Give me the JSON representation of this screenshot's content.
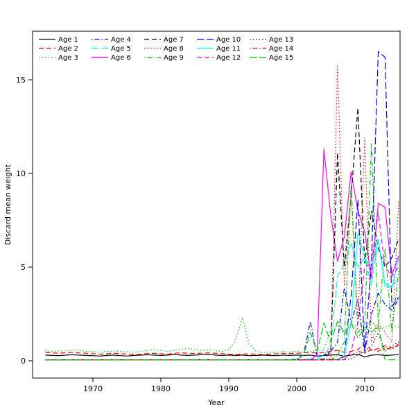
{
  "figure": {
    "background": "#ffffff"
  },
  "chart_data": {
    "type": "line",
    "title": "",
    "xlabel": "Year",
    "ylabel": "Discard mean weight",
    "grid": false,
    "legend_position": "top-left",
    "xlim": [
      1961.5,
      2016
    ],
    "ylim": [
      0,
      17.5
    ],
    "x_ticks": [
      1970,
      1980,
      1990,
      2000,
      2010
    ],
    "y_ticks": [
      0,
      5,
      10,
      15
    ],
    "years": [
      1963,
      1964,
      1965,
      1966,
      1967,
      1968,
      1969,
      1970,
      1971,
      1972,
      1973,
      1974,
      1975,
      1976,
      1977,
      1978,
      1979,
      1980,
      1981,
      1982,
      1983,
      1984,
      1985,
      1986,
      1987,
      1988,
      1989,
      1990,
      1991,
      1992,
      1993,
      1994,
      1995,
      1996,
      1997,
      1998,
      1999,
      2000,
      2001,
      2002,
      2003,
      2004,
      2005,
      2006,
      2007,
      2008,
      2009,
      2010,
      2011,
      2012,
      2013,
      2014,
      2015
    ],
    "series": [
      {
        "name": "Age 1",
        "color": "#000000",
        "linetype": "solid",
        "values": [
          0.3,
          0.28,
          0.27,
          0.3,
          0.32,
          0.3,
          0.28,
          0.27,
          0.25,
          0.28,
          0.3,
          0.27,
          0.25,
          0.28,
          0.3,
          0.32,
          0.3,
          0.28,
          0.3,
          0.33,
          0.3,
          0.28,
          0.3,
          0.32,
          0.35,
          0.3,
          0.28,
          0.3,
          0.28,
          0.3,
          0.27,
          0.28,
          0.3,
          0.28,
          0.27,
          0.3,
          0.28,
          0.3,
          0.28,
          0.3,
          0.25,
          0.28,
          0.3,
          0.32,
          0.25,
          0.3,
          0.35,
          0.2,
          0.3,
          0.32,
          0.28,
          0.3,
          0.33
        ]
      },
      {
        "name": "Age 2",
        "color": "#FF0000",
        "linetype": "dashed",
        "values": [
          0.45,
          0.42,
          0.4,
          0.43,
          0.45,
          0.42,
          0.4,
          0.38,
          0.35,
          0.37,
          0.4,
          0.38,
          0.35,
          0.33,
          0.35,
          0.38,
          0.4,
          0.37,
          0.35,
          0.4,
          0.42,
          0.4,
          0.38,
          0.4,
          0.42,
          0.4,
          0.38,
          0.35,
          0.33,
          0.35,
          0.37,
          0.35,
          0.33,
          0.35,
          0.37,
          0.4,
          0.38,
          0.4,
          0.42,
          0.45,
          0.4,
          0.45,
          0.5,
          0.55,
          0.45,
          0.5,
          0.6,
          0.9,
          0.55,
          0.65,
          0.8,
          0.7,
          0.8
        ]
      },
      {
        "name": "Age 3",
        "color": "#00CD00",
        "linetype": "dotted",
        "values": [
          0.55,
          0.5,
          0.52,
          0.55,
          0.58,
          0.55,
          0.5,
          0.48,
          0.45,
          0.5,
          0.52,
          0.5,
          0.48,
          0.45,
          0.5,
          0.55,
          0.6,
          0.55,
          0.5,
          0.55,
          0.6,
          0.65,
          0.6,
          0.55,
          0.6,
          0.55,
          0.5,
          0.6,
          1.1,
          2.3,
          0.9,
          0.5,
          0.45,
          0.4,
          0.45,
          0.5,
          0.45,
          0.5,
          0.45,
          0.5,
          0.55,
          0.6,
          1.6,
          1.9,
          1.4,
          2.0,
          1.7,
          1.6,
          2.1,
          1.7,
          1.8,
          1.9,
          1.8
        ]
      },
      {
        "name": "Age 4",
        "color": "#0000FF",
        "linetype": "dotdash",
        "values": [
          0.05,
          0.05,
          0.05,
          0.05,
          0.05,
          0.05,
          0.05,
          0.05,
          0.05,
          0.05,
          0.05,
          0.05,
          0.05,
          0.05,
          0.05,
          0.05,
          0.05,
          0.05,
          0.05,
          0.05,
          0.05,
          0.05,
          0.05,
          0.05,
          0.05,
          0.05,
          0.05,
          0.05,
          0.05,
          0.05,
          0.05,
          0.05,
          0.05,
          0.05,
          0.05,
          0.05,
          0.05,
          0.1,
          0.3,
          2.1,
          0.2,
          0.3,
          0.5,
          1.0,
          3.9,
          2.0,
          3.3,
          0.4,
          2.5,
          3.6,
          3.0,
          2.7,
          3.3
        ]
      },
      {
        "name": "Age 5",
        "color": "#00FFFF",
        "linetype": "longdash",
        "values": [
          0.05,
          0.05,
          0.05,
          0.05,
          0.05,
          0.05,
          0.05,
          0.05,
          0.05,
          0.05,
          0.05,
          0.05,
          0.05,
          0.05,
          0.05,
          0.05,
          0.05,
          0.05,
          0.05,
          0.05,
          0.05,
          0.05,
          0.05,
          0.05,
          0.05,
          0.05,
          0.05,
          0.05,
          0.05,
          0.05,
          0.05,
          0.05,
          0.05,
          0.05,
          0.05,
          0.05,
          0.05,
          0.05,
          0.05,
          0.1,
          0.1,
          0.3,
          0.8,
          4.5,
          5.2,
          6.3,
          5.0,
          5.5,
          4.0,
          6.5,
          4.1,
          4.0,
          4.3
        ]
      },
      {
        "name": "Age 6",
        "color": "#FF00FF",
        "linetype": "solid",
        "values": [
          0.05,
          0.05,
          0.05,
          0.05,
          0.05,
          0.05,
          0.05,
          0.05,
          0.05,
          0.05,
          0.05,
          0.05,
          0.05,
          0.05,
          0.05,
          0.05,
          0.05,
          0.05,
          0.05,
          0.05,
          0.05,
          0.05,
          0.05,
          0.05,
          0.05,
          0.05,
          0.05,
          0.05,
          0.05,
          0.05,
          0.05,
          0.05,
          0.05,
          0.05,
          0.05,
          0.05,
          0.05,
          0.05,
          0.05,
          0.05,
          0.3,
          11.3,
          7.8,
          5.3,
          6.6,
          10.1,
          8.0,
          6.9,
          4.4,
          8.4,
          8.2,
          4.6,
          5.6
        ]
      },
      {
        "name": "Age 7",
        "color": "#000000",
        "linetype": "dashed",
        "values": [
          0.05,
          0.05,
          0.05,
          0.05,
          0.05,
          0.05,
          0.05,
          0.05,
          0.05,
          0.05,
          0.05,
          0.05,
          0.05,
          0.05,
          0.05,
          0.05,
          0.05,
          0.05,
          0.05,
          0.05,
          0.05,
          0.05,
          0.05,
          0.05,
          0.05,
          0.05,
          0.05,
          0.05,
          0.05,
          0.05,
          0.05,
          0.05,
          0.05,
          0.05,
          0.05,
          0.05,
          0.05,
          0.05,
          0.05,
          0.05,
          0.05,
          0.1,
          0.5,
          11.1,
          5.0,
          8.8,
          13.5,
          5.2,
          8.0,
          6.0,
          5.0,
          5.5,
          6.5
        ]
      },
      {
        "name": "Age 8",
        "color": "#FF0000",
        "linetype": "dotted",
        "values": [
          0.05,
          0.05,
          0.05,
          0.05,
          0.05,
          0.05,
          0.05,
          0.05,
          0.05,
          0.05,
          0.05,
          0.05,
          0.05,
          0.05,
          0.05,
          0.05,
          0.05,
          0.05,
          0.05,
          0.05,
          0.05,
          0.05,
          0.05,
          0.05,
          0.05,
          0.05,
          0.05,
          0.05,
          0.05,
          0.05,
          0.05,
          0.05,
          0.05,
          0.05,
          0.05,
          0.05,
          0.05,
          0.05,
          0.05,
          0.05,
          0.05,
          0.05,
          0.1,
          15.8,
          4.0,
          9.0,
          2.0,
          11.9,
          1.0,
          2.0,
          1.5,
          1.0,
          8.5
        ]
      },
      {
        "name": "Age 9",
        "color": "#00CD00",
        "linetype": "dotdash",
        "values": [
          0.05,
          0.05,
          0.05,
          0.05,
          0.05,
          0.05,
          0.05,
          0.05,
          0.05,
          0.05,
          0.05,
          0.05,
          0.05,
          0.05,
          0.05,
          0.05,
          0.05,
          0.05,
          0.05,
          0.05,
          0.05,
          0.05,
          0.05,
          0.05,
          0.05,
          0.05,
          0.05,
          0.05,
          0.05,
          0.05,
          0.05,
          0.05,
          0.05,
          0.05,
          0.05,
          0.05,
          0.05,
          0.05,
          0.05,
          0.05,
          0.05,
          0.05,
          0.05,
          0.3,
          1.0,
          9.5,
          1.5,
          2.0,
          11.6,
          2.0,
          6.0,
          1.5,
          4.8
        ]
      },
      {
        "name": "Age 10",
        "color": "#0000FF",
        "linetype": "longdash",
        "values": [
          0.05,
          0.05,
          0.05,
          0.05,
          0.05,
          0.05,
          0.05,
          0.05,
          0.05,
          0.05,
          0.05,
          0.05,
          0.05,
          0.05,
          0.05,
          0.05,
          0.05,
          0.05,
          0.05,
          0.05,
          0.05,
          0.05,
          0.05,
          0.05,
          0.05,
          0.05,
          0.05,
          0.05,
          0.05,
          0.05,
          0.05,
          0.05,
          0.05,
          0.05,
          0.05,
          0.05,
          0.05,
          0.05,
          0.05,
          0.05,
          0.05,
          0.05,
          0.05,
          0.05,
          0.3,
          3.5,
          8.6,
          0.5,
          5.3,
          16.5,
          16.2,
          2.9,
          3.4
        ]
      },
      {
        "name": "Age 11",
        "color": "#00FFFF",
        "linetype": "solid",
        "values": [
          0.05,
          0.05,
          0.05,
          0.05,
          0.05,
          0.05,
          0.05,
          0.05,
          0.05,
          0.05,
          0.05,
          0.05,
          0.05,
          0.05,
          0.05,
          0.05,
          0.05,
          0.05,
          0.05,
          0.05,
          0.05,
          0.05,
          0.05,
          0.05,
          0.05,
          0.05,
          0.05,
          0.05,
          0.05,
          0.05,
          0.05,
          0.05,
          0.05,
          0.05,
          0.05,
          0.05,
          0.05,
          0.05,
          0.05,
          0.05,
          0.05,
          0.05,
          0.05,
          0.05,
          0.3,
          2.0,
          6.8,
          5.5,
          5.0,
          6.5,
          4.0,
          3.9,
          5.5
        ]
      },
      {
        "name": "Age 12",
        "color": "#FF00FF",
        "linetype": "dashed",
        "values": [
          0.05,
          0.05,
          0.05,
          0.05,
          0.05,
          0.05,
          0.05,
          0.05,
          0.05,
          0.05,
          0.05,
          0.05,
          0.05,
          0.05,
          0.05,
          0.05,
          0.05,
          0.05,
          0.05,
          0.05,
          0.05,
          0.05,
          0.05,
          0.05,
          0.05,
          0.05,
          0.05,
          0.05,
          0.05,
          0.05,
          0.05,
          0.05,
          0.05,
          0.05,
          0.05,
          0.05,
          0.05,
          0.05,
          0.05,
          0.05,
          0.05,
          0.05,
          0.05,
          0.05,
          0.05,
          0.5,
          2.0,
          5.0,
          5.2,
          7.9,
          5.0,
          4.5,
          5.0
        ]
      },
      {
        "name": "Age 13",
        "color": "#000000",
        "linetype": "dotted",
        "values": [
          0.05,
          0.05,
          0.05,
          0.05,
          0.05,
          0.05,
          0.05,
          0.05,
          0.05,
          0.05,
          0.05,
          0.05,
          0.05,
          0.05,
          0.05,
          0.05,
          0.05,
          0.05,
          0.05,
          0.05,
          0.05,
          0.05,
          0.05,
          0.05,
          0.05,
          0.05,
          0.05,
          0.05,
          0.05,
          0.05,
          0.05,
          0.05,
          0.05,
          0.05,
          0.05,
          0.05,
          0.05,
          0.05,
          0.05,
          0.05,
          0.05,
          0.05,
          0.05,
          0.05,
          0.05,
          0.1,
          0.3,
          0.5,
          0.8,
          1.5,
          0.5,
          0.8,
          1.0
        ]
      },
      {
        "name": "Age 14",
        "color": "#FF0000",
        "linetype": "dotdash",
        "values": [
          0.05,
          0.05,
          0.05,
          0.05,
          0.05,
          0.05,
          0.05,
          0.05,
          0.05,
          0.05,
          0.05,
          0.05,
          0.05,
          0.05,
          0.05,
          0.05,
          0.05,
          0.05,
          0.05,
          0.05,
          0.05,
          0.05,
          0.05,
          0.05,
          0.05,
          0.05,
          0.05,
          0.05,
          0.05,
          0.05,
          0.05,
          0.05,
          0.05,
          0.05,
          0.05,
          0.05,
          0.05,
          0.05,
          0.05,
          0.05,
          0.05,
          0.05,
          0.05,
          0.1,
          0.2,
          0.3,
          0.5,
          0.4,
          0.6,
          0.5,
          0.7,
          0.6,
          0.9
        ]
      },
      {
        "name": "Age 15",
        "color": "#00CD00",
        "linetype": "longdash",
        "values": [
          0.05,
          0.05,
          0.05,
          0.05,
          0.05,
          0.05,
          0.05,
          0.05,
          0.05,
          0.05,
          0.05,
          0.05,
          0.05,
          0.05,
          0.05,
          0.05,
          0.05,
          0.05,
          0.05,
          0.05,
          0.05,
          0.05,
          0.05,
          0.05,
          0.05,
          0.05,
          0.05,
          0.05,
          0.05,
          0.05,
          0.05,
          0.05,
          0.05,
          0.05,
          0.05,
          0.05,
          0.05,
          0.05,
          0.3,
          1.5,
          0.5,
          2.0,
          1.0,
          2.1,
          1.5,
          2.0,
          1.2,
          1.8,
          1.5,
          1.9,
          0.05,
          0.05,
          0.05
        ]
      }
    ]
  }
}
